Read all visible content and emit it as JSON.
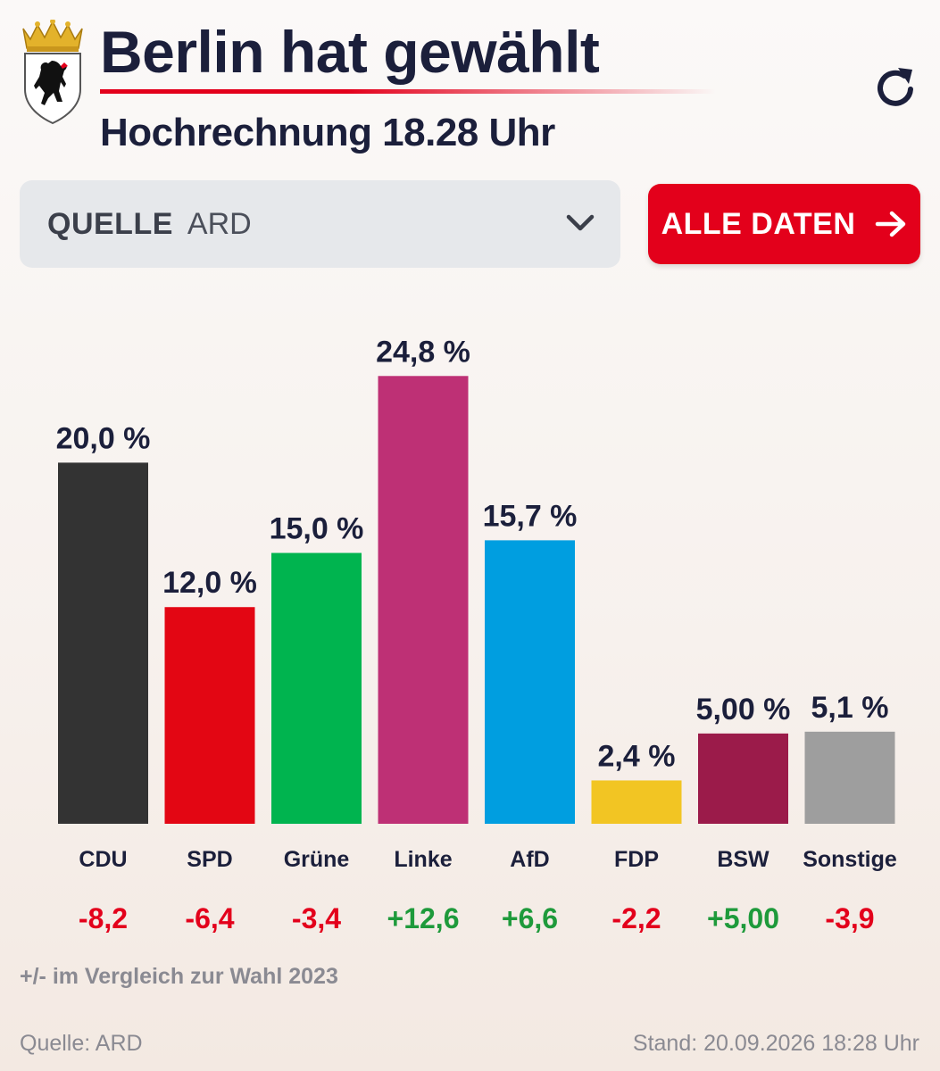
{
  "header": {
    "title": "Berlin hat gewählt",
    "subtitle": "Hochrechnung 18.28 Uhr",
    "crest_icon": "berlin-bear-crest",
    "refresh_icon": "refresh-icon"
  },
  "source_select": {
    "label": "QUELLE",
    "value": "ARD"
  },
  "all_data_button": {
    "label": "ALLE DATEN",
    "color": "#e3001b"
  },
  "chart_data": {
    "type": "bar",
    "categories": [
      "CDU",
      "SPD",
      "Grüne",
      "Linke",
      "AfD",
      "FDP",
      "BSW",
      "Sonstige"
    ],
    "values": [
      20.0,
      12.0,
      15.0,
      24.8,
      15.7,
      2.4,
      5.0,
      5.1
    ],
    "value_labels": [
      "20,0 %",
      "12,0 %",
      "15,0 %",
      "24,8 %",
      "15,7 %",
      "2,4 %",
      "5,00 %",
      "5,1 %"
    ],
    "colors": [
      "#333333",
      "#e30613",
      "#00b44f",
      "#be3075",
      "#009ee0",
      "#f2c523",
      "#9b1b4a",
      "#9e9e9e"
    ],
    "changes": [
      -8.2,
      -6.4,
      -3.4,
      12.6,
      6.6,
      -2.2,
      5.0,
      -3.9
    ],
    "change_labels": [
      "-8,2",
      "-6,4",
      "-3,4",
      "+12,6",
      "+6,6",
      "-2,2",
      "+5,00",
      "-3,9"
    ],
    "change_colors": {
      "positive": "#1e9a3b",
      "negative": "#e3001b"
    },
    "ylim": [
      0,
      26
    ],
    "grid": false,
    "legend": "none"
  },
  "footnote": "+/- im Vergleich zur Wahl 2023",
  "footer": {
    "source": "Quelle: ARD",
    "stand": "Stand: 20.09.2026 18:28 Uhr"
  }
}
